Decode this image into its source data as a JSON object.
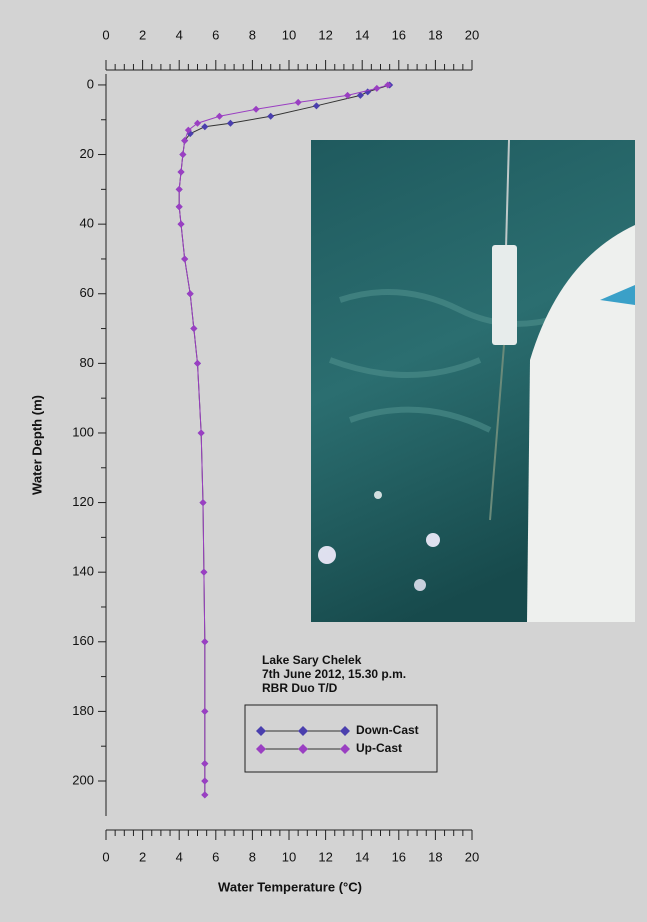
{
  "chart_data": {
    "type": "line",
    "xlabel": "Water Temperature (°C)",
    "ylabel": "Water Depth (m)",
    "annotations": [
      "Lake Sary Chelek",
      "7th June 2012, 15.30 p.m.",
      "RBR Duo T/D"
    ],
    "xlim": [
      0,
      20
    ],
    "xticks": [
      0,
      2,
      4,
      6,
      8,
      10,
      12,
      14,
      16,
      18,
      20
    ],
    "ylim": [
      -3,
      210
    ],
    "yticks": [
      0,
      20,
      40,
      60,
      80,
      100,
      120,
      140,
      160,
      180,
      200
    ],
    "y_inverted": true,
    "series": [
      {
        "name": "Down-Cast",
        "color": "#4a3fae",
        "x": [
          15.5,
          14.3,
          13.9,
          11.5,
          9.0,
          6.8,
          5.4,
          4.6,
          4.3,
          4.2,
          4.1,
          4.0,
          4.0,
          4.1,
          4.3,
          4.6,
          4.8,
          5.0,
          5.2,
          5.3,
          5.35,
          5.4,
          5.4,
          5.4,
          5.4,
          5.4
        ],
        "values": [
          0,
          2,
          3,
          6,
          9,
          11,
          12,
          14,
          16,
          20,
          25,
          30,
          35,
          40,
          50,
          60,
          70,
          80,
          100,
          120,
          140,
          160,
          180,
          195,
          200,
          204
        ]
      },
      {
        "name": "Up-Cast",
        "color": "#9a3fc2",
        "x": [
          15.4,
          14.8,
          13.2,
          10.5,
          8.2,
          6.2,
          5.0,
          4.5,
          4.3,
          4.2,
          4.1,
          4.0,
          4.0,
          4.1,
          4.3,
          4.6,
          4.8,
          5.0,
          5.2,
          5.3,
          5.35,
          5.4,
          5.4,
          5.4,
          5.4,
          5.4
        ],
        "values": [
          0,
          1,
          3,
          5,
          7,
          9,
          11,
          13,
          16,
          20,
          25,
          30,
          35,
          40,
          50,
          60,
          70,
          80,
          100,
          120,
          140,
          160,
          180,
          195,
          200,
          204
        ]
      }
    ]
  }
}
